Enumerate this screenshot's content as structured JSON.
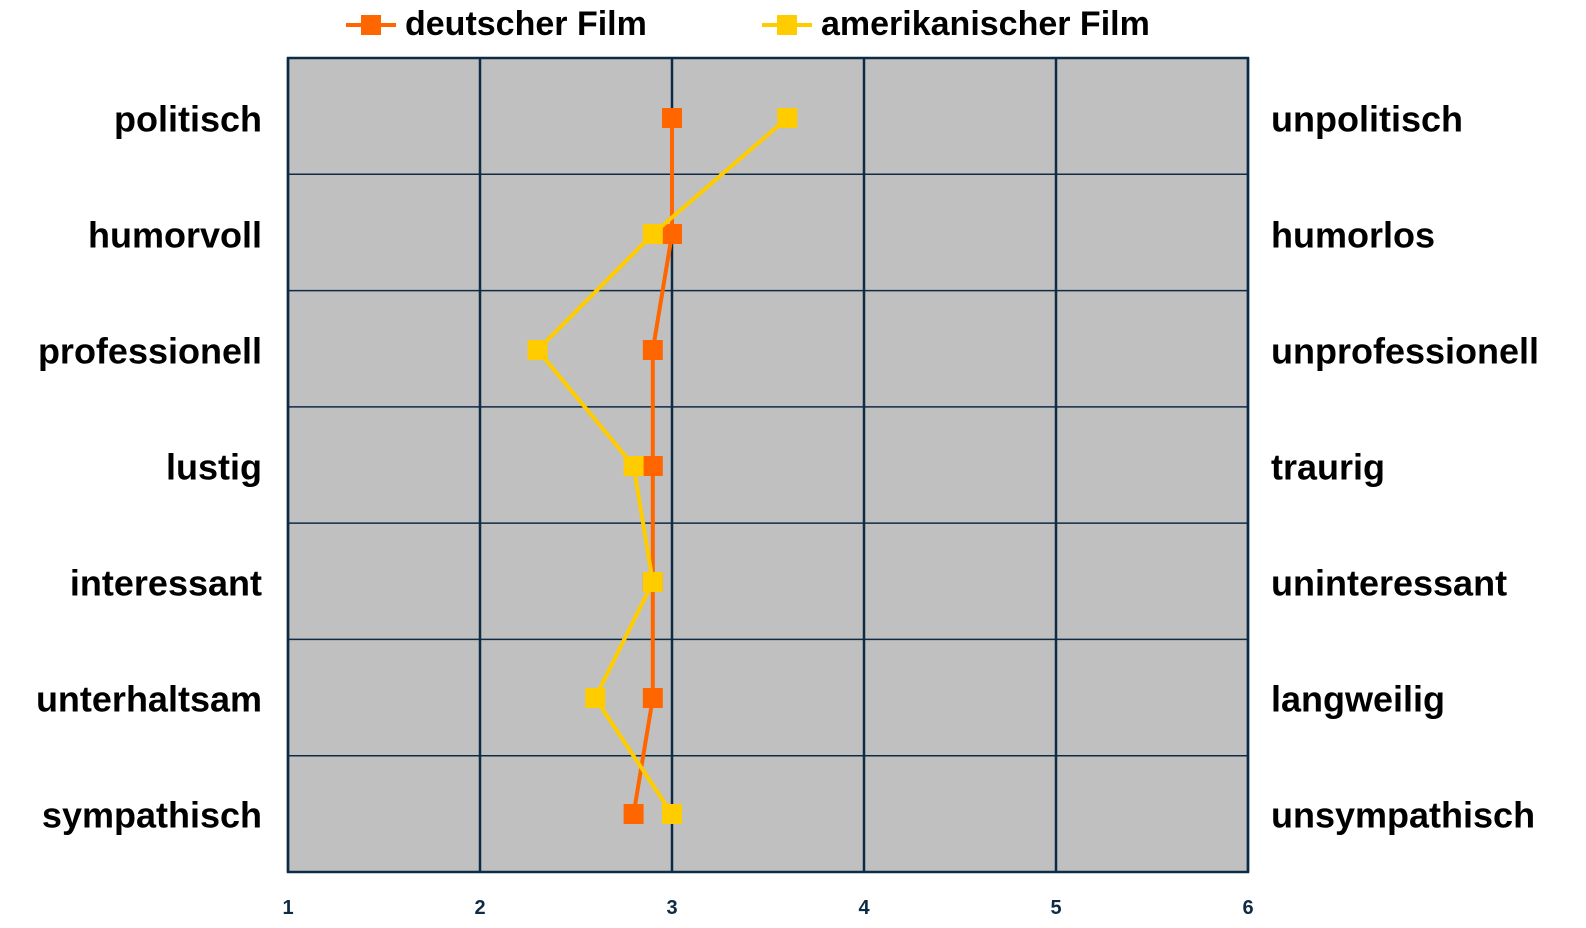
{
  "chart_data": {
    "type": "line",
    "orientation": "horizontal-profile",
    "title": "",
    "xlim": [
      1,
      6
    ],
    "x_ticks": [
      "1",
      "2",
      "3",
      "4",
      "5",
      "6"
    ],
    "categories_left": [
      "politisch",
      "humorvoll",
      "professionell",
      "lustig",
      "interessant",
      "unterhaltsam",
      "sympathisch"
    ],
    "categories_right": [
      "unpolitisch",
      "humorlos",
      "unprofessionell",
      "traurig",
      "uninteressant",
      "langweilig",
      "unsympathisch"
    ],
    "series": [
      {
        "name": "deutscher Film",
        "color": "#ff6600",
        "values": [
          3.0,
          3.0,
          2.9,
          2.9,
          2.9,
          2.9,
          2.8
        ]
      },
      {
        "name": "amerikanischer Film",
        "color": "#ffcc00",
        "values": [
          3.6,
          2.9,
          2.3,
          2.8,
          2.9,
          2.6,
          3.0
        ]
      }
    ],
    "grid": true,
    "legend_position": "top",
    "plot_background": "#c0c0c0",
    "grid_color": "#0d2b45"
  }
}
